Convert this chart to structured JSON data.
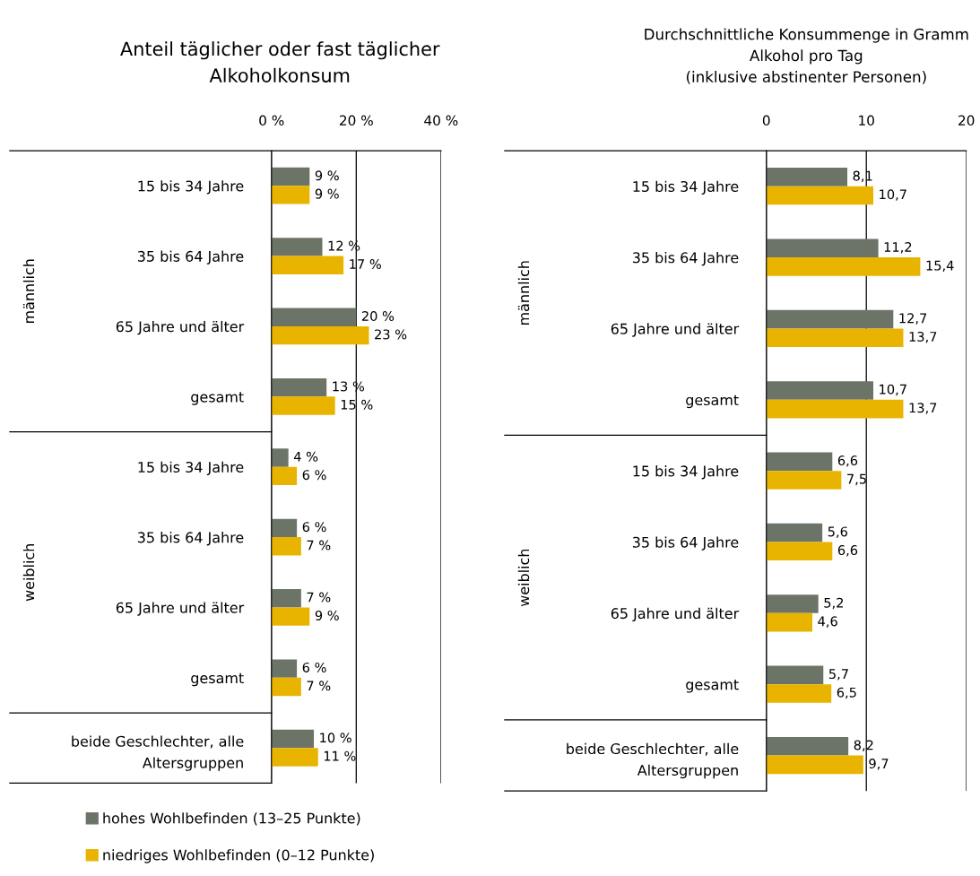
{
  "chart_data": [
    {
      "type": "bar",
      "orientation": "horizontal",
      "title": "Anteil täglicher oder fast täglicher\nAlkoholkonsum",
      "categories": [
        "15 bis 34 Jahre",
        "35 bis 64 Jahre",
        "65 Jahre und älter",
        "gesamt",
        "15 bis 34 Jahre",
        "35 bis 64 Jahre",
        "65 Jahre und älter",
        "gesamt",
        "beide Geschlechter, alle\nAltersgruppen"
      ],
      "series": [
        {
          "name": "hohes Wohlbefinden (13–25 Punkte)",
          "color": "#6b7467",
          "values": [
            9,
            12,
            20,
            13,
            4,
            6,
            7,
            6,
            10
          ],
          "value_labels": [
            "9 %",
            "12 %",
            "20 %",
            "13 %",
            "4 %",
            "6 %",
            "7 %",
            "6 %",
            "10 %"
          ]
        },
        {
          "name": "niedriges Wohlbefinden (0–12 Punkte)",
          "color": "#e8b400",
          "values": [
            9,
            17,
            23,
            15,
            6,
            7,
            9,
            7,
            11
          ],
          "value_labels": [
            "9 %",
            "17 %",
            "23 %",
            "15 %",
            "6 %",
            "7 %",
            "9 %",
            "7 %",
            "11 %"
          ]
        }
      ],
      "xlim": [
        0,
        40
      ],
      "xticks": [
        {
          "value": 0,
          "label": "0 %"
        },
        {
          "value": 20,
          "label": "20 %"
        },
        {
          "value": 40,
          "label": "40 %"
        }
      ],
      "grid": "x",
      "legend": "bottom",
      "annotations": [
        "männlich",
        "weiblich"
      ]
    },
    {
      "type": "bar",
      "orientation": "horizontal",
      "title": "Durchschnittliche Konsummenge in Gramm\nAlkohol pro Tag\n(inklusive abstinenter Personen)",
      "categories": [
        "15 bis 34 Jahre",
        "35 bis 64 Jahre",
        "65 Jahre und älter",
        "gesamt",
        "15 bis 34 Jahre",
        "35 bis 64 Jahre",
        "65 Jahre und älter",
        "gesamt",
        "beide Geschlechter, alle\nAltersgruppen"
      ],
      "series": [
        {
          "color": "#6b7467",
          "values": [
            8.1,
            11.2,
            12.7,
            10.7,
            6.6,
            5.6,
            5.2,
            5.7,
            8.2
          ],
          "value_labels": [
            "8,1",
            "11,2",
            "12,7",
            "10,7",
            "6,6",
            "5,6",
            "5,2",
            "5,7",
            "8,2"
          ]
        },
        {
          "color": "#e8b400",
          "values": [
            10.7,
            15.4,
            13.7,
            13.7,
            7.5,
            6.6,
            4.6,
            6.5,
            9.7
          ],
          "value_labels": [
            "10,7",
            "15,4",
            "13,7",
            "13,7",
            "7,5",
            "6,6",
            "4,6",
            "6,5",
            "9,7"
          ]
        }
      ],
      "xlim": [
        0,
        20
      ],
      "xticks": [
        0,
        10,
        20
      ],
      "grid": "x",
      "annotations": [
        "männlich",
        "weiblich"
      ]
    }
  ]
}
